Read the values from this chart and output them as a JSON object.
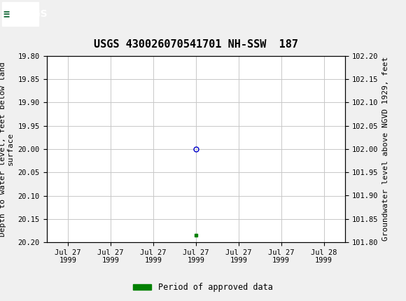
{
  "title": "USGS 430026070541701 NH-SSW  187",
  "title_fontsize": 11,
  "header_bg_color": "#1a6b3c",
  "ylabel_left": "Depth to water level, feet below land\nsurface",
  "ylabel_right": "Groundwater level above NGVD 1929, feet",
  "ylim_left": [
    19.8,
    20.2
  ],
  "ylim_right": [
    101.8,
    102.2
  ],
  "yticks_left": [
    19.8,
    19.85,
    19.9,
    19.95,
    20.0,
    20.05,
    20.1,
    20.15,
    20.2
  ],
  "yticks_right": [
    101.8,
    101.85,
    101.9,
    101.95,
    102.0,
    102.05,
    102.1,
    102.15,
    102.2
  ],
  "data_point_x": 0,
  "data_point_y": 20.0,
  "data_point_color": "#0000cc",
  "data_point_marker": "o",
  "data_point_markersize": 5,
  "data_point_fillstyle": "none",
  "approved_point_x": 0,
  "approved_point_y": 20.185,
  "approved_point_color": "#008000",
  "approved_point_marker": "s",
  "approved_point_markersize": 3,
  "grid_color": "#c8c8c8",
  "background_color": "#f0f0f0",
  "plot_bg_color": "#ffffff",
  "legend_label": "Period of approved data",
  "legend_color": "#008000",
  "axis_label_fontsize": 8,
  "tick_fontsize": 7.5,
  "x_tick_labels": [
    "Jul 27\n1999",
    "Jul 27\n1999",
    "Jul 27\n1999",
    "Jul 27\n1999",
    "Jul 27\n1999",
    "Jul 27\n1999",
    "Jul 28\n1999"
  ],
  "x_tick_offsets_hours": [
    -36,
    -24,
    -12,
    0,
    12,
    24,
    36
  ],
  "xlim": [
    -42,
    42
  ],
  "border_color": "#000000"
}
